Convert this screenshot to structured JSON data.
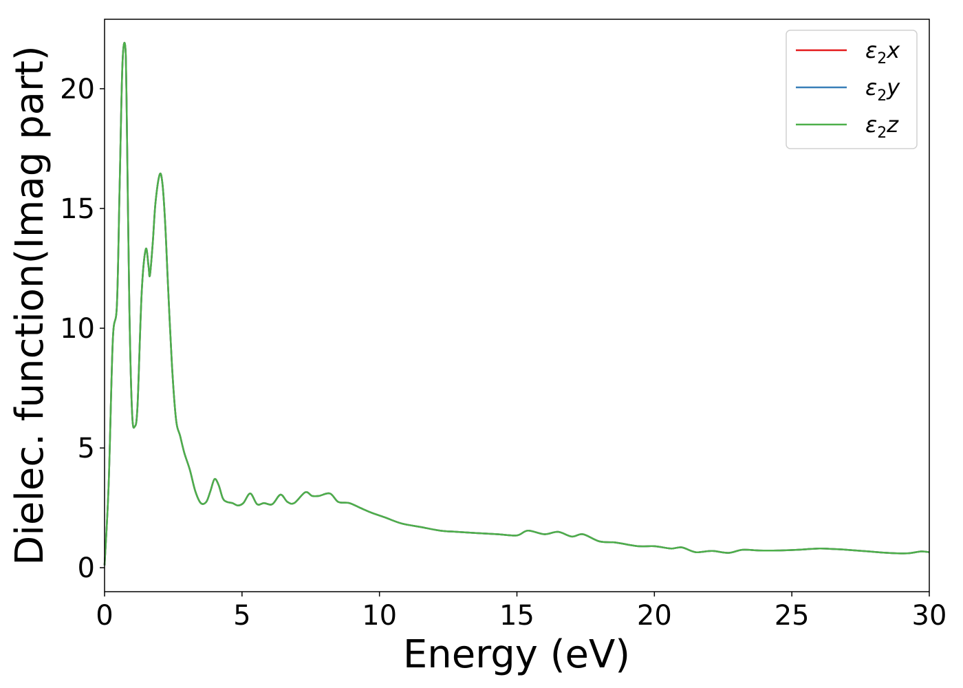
{
  "chart_data": {
    "type": "line",
    "title": "",
    "xlabel": "Energy (eV)",
    "ylabel": "Dielec. function(Imag part)",
    "xlim": [
      0,
      30
    ],
    "ylim": [
      -1,
      22.9
    ],
    "xticks": [
      "0",
      "5",
      "10",
      "15",
      "20",
      "25",
      "30"
    ],
    "yticks": [
      "0",
      "5",
      "10",
      "15",
      "20"
    ],
    "grid": false,
    "legend_position": "top-right",
    "x": [
      0,
      0.15,
      0.3,
      0.45,
      0.55,
      0.65,
      0.75,
      0.8,
      0.9,
      1.0,
      1.1,
      1.2,
      1.35,
      1.5,
      1.6,
      1.65,
      1.75,
      1.85,
      2.0,
      2.1,
      2.2,
      2.3,
      2.45,
      2.6,
      2.75,
      2.9,
      3.1,
      3.3,
      3.5,
      3.7,
      3.85,
      4.0,
      4.15,
      4.3,
      4.45,
      4.65,
      4.85,
      5.05,
      5.3,
      5.55,
      5.8,
      6.1,
      6.4,
      6.65,
      6.9,
      7.3,
      7.55,
      7.8,
      8.2,
      8.5,
      8.9,
      9.3,
      9.7,
      10.2,
      10.8,
      11.5,
      12.2,
      12.8,
      13.5,
      14.3,
      15.0,
      15.4,
      16.0,
      16.5,
      17.0,
      17.4,
      18.0,
      18.6,
      19.4,
      20.0,
      20.6,
      21.0,
      21.5,
      22.1,
      22.7,
      23.2,
      23.8,
      24.5,
      25.2,
      26.0,
      26.5,
      27.0,
      27.8,
      28.5,
      29.2,
      29.7,
      30.0
    ],
    "series": [
      {
        "name": "ε2x",
        "color": "#e41a1c",
        "values": [
          0.1,
          3.5,
          9.5,
          11,
          16,
          21,
          21.8,
          19.5,
          11,
          6.5,
          5.9,
          6.8,
          11.5,
          13.3,
          12.6,
          12.2,
          13.5,
          15.2,
          16.4,
          16.1,
          14.5,
          12,
          8.5,
          6.2,
          5.5,
          4.8,
          4.1,
          3.2,
          2.7,
          2.75,
          3.2,
          3.7,
          3.45,
          2.9,
          2.75,
          2.7,
          2.6,
          2.7,
          3.1,
          2.65,
          2.7,
          2.65,
          3.05,
          2.75,
          2.7,
          3.15,
          3.0,
          3.0,
          3.1,
          2.75,
          2.7,
          2.5,
          2.3,
          2.1,
          1.85,
          1.7,
          1.55,
          1.5,
          1.45,
          1.4,
          1.35,
          1.55,
          1.4,
          1.5,
          1.3,
          1.4,
          1.1,
          1.05,
          0.9,
          0.9,
          0.8,
          0.85,
          0.65,
          0.7,
          0.62,
          0.75,
          0.72,
          0.72,
          0.75,
          0.8,
          0.78,
          0.75,
          0.68,
          0.62,
          0.6,
          0.68,
          0.65
        ]
      },
      {
        "name": "ε2y",
        "color": "#377eb8",
        "values": [
          0.1,
          3.5,
          9.5,
          11,
          16,
          21,
          21.8,
          19.5,
          11,
          6.5,
          5.9,
          6.8,
          11.5,
          13.3,
          12.6,
          12.2,
          13.5,
          15.2,
          16.4,
          16.1,
          14.5,
          12,
          8.5,
          6.2,
          5.5,
          4.8,
          4.1,
          3.2,
          2.7,
          2.75,
          3.2,
          3.7,
          3.45,
          2.9,
          2.75,
          2.7,
          2.6,
          2.7,
          3.1,
          2.65,
          2.7,
          2.65,
          3.05,
          2.75,
          2.7,
          3.15,
          3.0,
          3.0,
          3.1,
          2.75,
          2.7,
          2.5,
          2.3,
          2.1,
          1.85,
          1.7,
          1.55,
          1.5,
          1.45,
          1.4,
          1.35,
          1.55,
          1.4,
          1.5,
          1.3,
          1.4,
          1.1,
          1.05,
          0.9,
          0.9,
          0.8,
          0.85,
          0.65,
          0.7,
          0.62,
          0.75,
          0.72,
          0.72,
          0.75,
          0.8,
          0.78,
          0.75,
          0.68,
          0.62,
          0.6,
          0.68,
          0.65
        ]
      },
      {
        "name": "ε2z",
        "color": "#4daf4a",
        "values": [
          0.1,
          3.5,
          9.5,
          11,
          16,
          21,
          21.8,
          19.5,
          11,
          6.5,
          5.9,
          6.8,
          11.5,
          13.3,
          12.6,
          12.2,
          13.5,
          15.2,
          16.4,
          16.1,
          14.5,
          12,
          8.5,
          6.2,
          5.5,
          4.8,
          4.1,
          3.2,
          2.7,
          2.75,
          3.2,
          3.7,
          3.45,
          2.9,
          2.75,
          2.7,
          2.6,
          2.7,
          3.1,
          2.65,
          2.7,
          2.65,
          3.05,
          2.75,
          2.7,
          3.15,
          3.0,
          3.0,
          3.1,
          2.75,
          2.7,
          2.5,
          2.3,
          2.1,
          1.85,
          1.7,
          1.55,
          1.5,
          1.45,
          1.4,
          1.35,
          1.55,
          1.4,
          1.5,
          1.3,
          1.4,
          1.1,
          1.05,
          0.9,
          0.9,
          0.8,
          0.85,
          0.65,
          0.7,
          0.62,
          0.75,
          0.72,
          0.72,
          0.75,
          0.8,
          0.78,
          0.75,
          0.68,
          0.62,
          0.6,
          0.68,
          0.65
        ]
      }
    ],
    "legend": [
      {
        "symbol": "ε",
        "sub": "2",
        "axis": "x"
      },
      {
        "symbol": "ε",
        "sub": "2",
        "axis": "y"
      },
      {
        "symbol": "ε",
        "sub": "2",
        "axis": "z"
      }
    ]
  }
}
